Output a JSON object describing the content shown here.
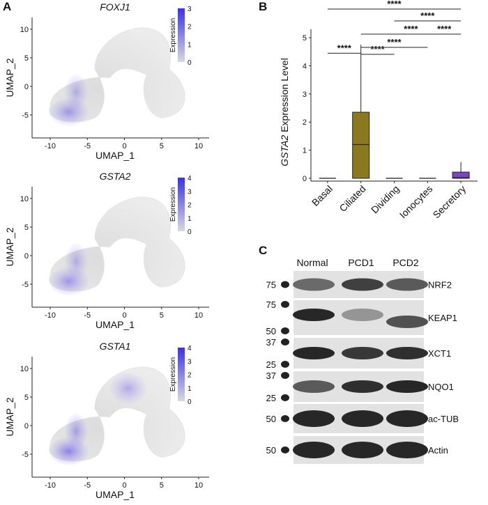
{
  "panels": {
    "a": "A",
    "b": "B",
    "c": "C"
  },
  "umap": [
    {
      "gene": "FOXJ1",
      "legend_title": "Expression",
      "scale_ticks": [
        "3",
        "2",
        "1",
        "0"
      ],
      "scale_max": 3,
      "yticks": [
        "10",
        "5",
        "0",
        "-5"
      ],
      "xticks": [
        "-10",
        "-5",
        "0",
        "5",
        "10"
      ],
      "xlabel": "UMAP_1",
      "ylabel": "UMAP_2",
      "colors": {
        "low": "#d9d9de",
        "high": "#3a2ff0"
      }
    },
    {
      "gene": "GSTA2",
      "legend_title": "Expression",
      "scale_ticks": [
        "4",
        "3",
        "2",
        "1",
        "0"
      ],
      "scale_max": 4,
      "yticks": [
        "10",
        "5",
        "0",
        "-5"
      ],
      "xticks": [
        "-10",
        "-5",
        "0",
        "5",
        "10"
      ],
      "xlabel": "UMAP_1",
      "ylabel": "UMAP_2",
      "colors": {
        "low": "#d9d9de",
        "high": "#3a2ff0"
      }
    },
    {
      "gene": "GSTA1",
      "legend_title": "Expression",
      "scale_ticks": [
        "4",
        "3",
        "2",
        "1",
        "0"
      ],
      "scale_max": 4,
      "yticks": [
        "10",
        "5",
        "0",
        "-5"
      ],
      "xticks": [
        "-10",
        "-5",
        "0",
        "5",
        "10"
      ],
      "xlabel": "UMAP_1",
      "ylabel": "UMAP_2",
      "colors": {
        "low": "#d9d9de",
        "high": "#3a2ff0"
      }
    }
  ],
  "chart_data": {
    "type": "box",
    "ylabel_gene": "GSTA2",
    "ylabel_suffix": " Expression Level",
    "ylim": [
      -0.1,
      5.3
    ],
    "yticks": [
      0,
      1,
      2,
      3,
      4,
      5
    ],
    "categories": [
      "Basal",
      "Ciliated",
      "Dividing",
      "Ionocytes",
      "Secretory"
    ],
    "boxes": [
      {
        "name": "Basal",
        "min": 0,
        "q1": 0,
        "median": 0,
        "q3": 0,
        "max": 0,
        "color": "#2e2e2e"
      },
      {
        "name": "Ciliated",
        "min": 0,
        "q1": 0,
        "median": 1.2,
        "q3": 2.35,
        "max": 4.75,
        "color": "#8a7a1f"
      },
      {
        "name": "Dividing",
        "min": 0,
        "q1": 0,
        "median": 0,
        "q3": 0,
        "max": 0,
        "color": "#2e2e2e"
      },
      {
        "name": "Ionocytes",
        "min": 0,
        "q1": 0,
        "median": 0,
        "q3": 0,
        "max": 0,
        "color": "#2e2e2e"
      },
      {
        "name": "Secretory",
        "min": 0,
        "q1": 0,
        "median": 0.02,
        "q3": 0.22,
        "max": 0.58,
        "color": "#7b45c6"
      }
    ],
    "significance": [
      {
        "from": "Basal",
        "to": "Ciliated",
        "label": "****"
      },
      {
        "from": "Ciliated",
        "to": "Dividing",
        "label": "****"
      },
      {
        "from": "Ciliated",
        "to": "Ionocytes",
        "label": "****"
      },
      {
        "from": "Ciliated",
        "to": "Secretory",
        "label": "****"
      },
      {
        "from": "Dividing",
        "to": "Secretory",
        "label": "****"
      },
      {
        "from": "Ionocytes",
        "to": "Secretory",
        "label": "****"
      },
      {
        "from": "Basal",
        "to": "Secretory",
        "label": "****"
      }
    ]
  },
  "western_blot": {
    "lanes": [
      "Normal",
      "PCD1",
      "PCD2"
    ],
    "rows": [
      {
        "protein": "NRF2",
        "markers": [
          "75"
        ],
        "intensity": [
          0.55,
          0.8,
          0.65
        ]
      },
      {
        "protein": "KEAP1",
        "markers": [
          "75",
          "50"
        ],
        "intensity": [
          0.95,
          0.3,
          0.7
        ]
      },
      {
        "protein": "XCT1",
        "markers": [
          "37",
          "25"
        ],
        "intensity": [
          0.95,
          0.85,
          0.9
        ]
      },
      {
        "protein": "NQO1",
        "markers": [
          "37",
          "25"
        ],
        "intensity": [
          0.65,
          0.9,
          0.95
        ]
      },
      {
        "protein": "ac-TUB",
        "markers": [
          "50"
        ],
        "intensity": [
          0.95,
          0.95,
          0.95
        ]
      },
      {
        "protein": "Actin",
        "markers": [
          "50"
        ],
        "intensity": [
          0.95,
          0.95,
          0.95
        ]
      }
    ]
  }
}
